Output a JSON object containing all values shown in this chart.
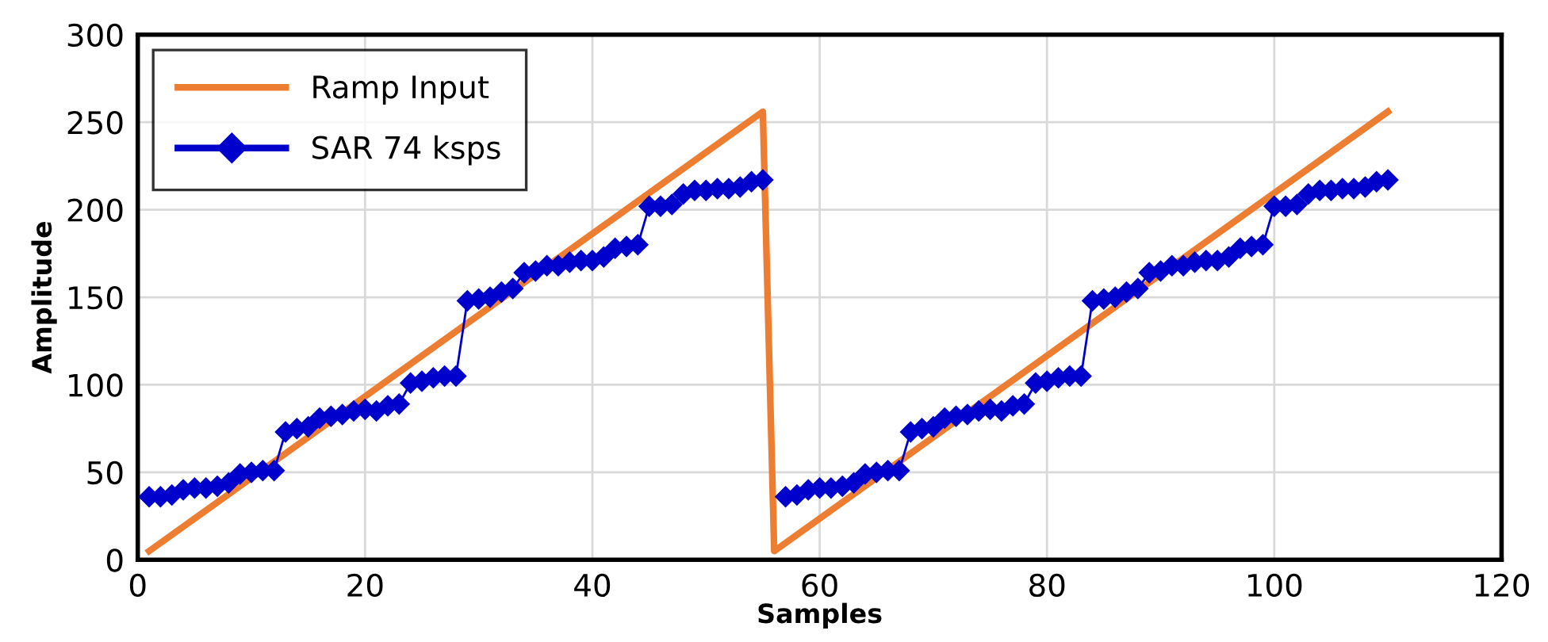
{
  "chart_data": {
    "type": "line",
    "xlabel": "Samples",
    "ylabel": "Amplitude",
    "xlim": [
      0,
      120
    ],
    "xticks": [
      0,
      20,
      40,
      60,
      80,
      100,
      120
    ],
    "ylim": [
      0,
      300
    ],
    "yticks": [
      0,
      50,
      100,
      150,
      200,
      250,
      300
    ],
    "grid": true,
    "legend": "top left",
    "series": [
      {
        "name": "Ramp Input",
        "color": "#ed7d31",
        "marker": "none",
        "x": [
          1,
          55,
          56,
          110
        ],
        "values": [
          5,
          256,
          5,
          256
        ]
      },
      {
        "name": "SAR 74 ksps",
        "color": "#0000cc",
        "marker": "diamond",
        "x": [
          1,
          2,
          3,
          4,
          5,
          6,
          7,
          8,
          9,
          10,
          11,
          12,
          13,
          14,
          15,
          16,
          17,
          18,
          19,
          20,
          21,
          22,
          23,
          24,
          25,
          26,
          27,
          28,
          29,
          30,
          31,
          32,
          33,
          34,
          35,
          36,
          37,
          38,
          39,
          40,
          41,
          42,
          43,
          44,
          45,
          46,
          47,
          48,
          49,
          50,
          51,
          52,
          53,
          54,
          55,
          56,
          57,
          58,
          59,
          60,
          61,
          62,
          63,
          64,
          65,
          66,
          67,
          68,
          69,
          70,
          71,
          72,
          73,
          74,
          75,
          76,
          77,
          78,
          79,
          80,
          81,
          82,
          83,
          84,
          85,
          86,
          87,
          88,
          89,
          90,
          91,
          92,
          93,
          94,
          95,
          96,
          97,
          98,
          99,
          100,
          101,
          102,
          103,
          104,
          105,
          106,
          107,
          108,
          109,
          110
        ],
        "values": [
          36,
          36,
          37,
          40,
          41,
          41,
          42,
          44,
          49,
          50,
          51,
          51,
          73,
          75,
          76,
          81,
          82,
          83,
          85,
          86,
          85,
          88,
          89,
          101,
          102,
          104,
          105,
          105,
          148,
          149,
          150,
          153,
          155,
          164,
          165,
          168,
          168,
          170,
          171,
          171,
          173,
          178,
          179,
          180,
          202,
          202,
          203,
          209,
          211,
          211,
          212,
          212,
          213,
          216,
          217,
          null,
          36,
          37,
          40,
          41,
          41,
          42,
          44,
          49,
          50,
          51,
          51,
          73,
          75,
          76,
          81,
          82,
          83,
          85,
          86,
          85,
          88,
          89,
          101,
          102,
          104,
          105,
          105,
          148,
          149,
          150,
          153,
          155,
          164,
          165,
          168,
          168,
          170,
          171,
          171,
          173,
          178,
          179,
          180,
          202,
          202,
          203,
          209,
          211,
          211,
          212,
          212,
          213,
          216,
          217
        ]
      }
    ]
  }
}
